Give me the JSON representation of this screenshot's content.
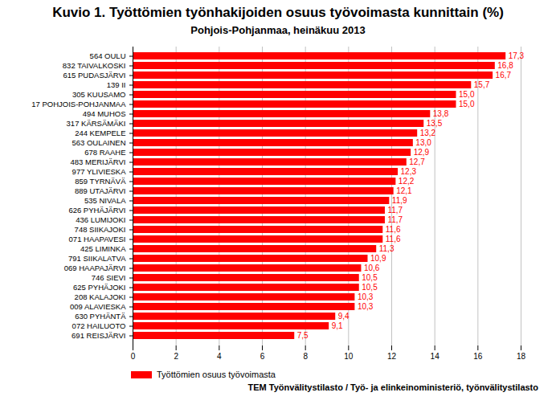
{
  "chart_data": {
    "type": "bar",
    "orientation": "horizontal",
    "title": "Kuvio 1. Työttömien työnhakijoiden osuus työvoimasta kunnittain (%)",
    "subtitle": "Pohjois-Pohjanmaa, heinäkuu 2013",
    "source": "TEM Työnvälitystilasto / Työ- ja elinkeinoministeriö, työnvälitystilasto",
    "categories": [
      "564 OULU",
      "832 TAIVALKOSKI",
      "615 PUDASJÄRVI",
      "139 II",
      "305 KUUSAMO",
      "17 POHJOIS-POHJANMAA",
      "494 MUHOS",
      "317 KÄRSÄMÄKI",
      "244 KEMPELE",
      "563 OULAINEN",
      "678 RAAHE",
      "483 MERIJÄRVI",
      "977 YLIVIESKA",
      "859 TYRNÄVÄ",
      "889 UTAJÄRVI",
      "535 NIVALA",
      "626 PYHÄJÄRVI",
      "436 LUMIJOKI",
      "748 SIIKAJOKI",
      "071 HAAPAVESI",
      "425 LIMINKA",
      "791 SIIKALATVA",
      "069 HAAPAJÄRVI",
      "746 SIEVI",
      "625 PYHÄJOKI",
      "208 KALAJOKI",
      "009 ALAVIESKA",
      "630 PYHÄNTÄ",
      "072 HAILUOTO",
      "691 REISJÄRVI"
    ],
    "series": [
      {
        "name": "Työttömien osuus työvoimasta",
        "color": "#ff0000",
        "values": [
          17.3,
          16.8,
          16.7,
          15.7,
          15.0,
          15.0,
          13.8,
          13.5,
          13.2,
          13.0,
          12.9,
          12.7,
          12.3,
          12.2,
          12.1,
          11.9,
          11.7,
          11.7,
          11.6,
          11.6,
          11.3,
          10.9,
          10.6,
          10.5,
          10.5,
          10.3,
          10.3,
          9.4,
          9.1,
          7.5
        ],
        "value_labels": [
          "17,3",
          "16,8",
          "16,7",
          "15,7",
          "15,0",
          "15,0",
          "13,8",
          "13,5",
          "13,2",
          "13,0",
          "12,9",
          "12,7",
          "12,3",
          "12,2",
          "12,1",
          "11,9",
          "11,7",
          "11,7",
          "11,6",
          "11,6",
          "11,3",
          "10,9",
          "10,6",
          "10,5",
          "10,5",
          "10,3",
          "10,3",
          "9,4",
          "9,1",
          "7,5"
        ]
      }
    ],
    "xlim": [
      0,
      18
    ],
    "xticks": [
      0,
      2,
      4,
      6,
      8,
      10,
      12,
      14,
      16,
      18
    ],
    "grid": true,
    "data_labels": true,
    "legend": "bottom-left"
  }
}
